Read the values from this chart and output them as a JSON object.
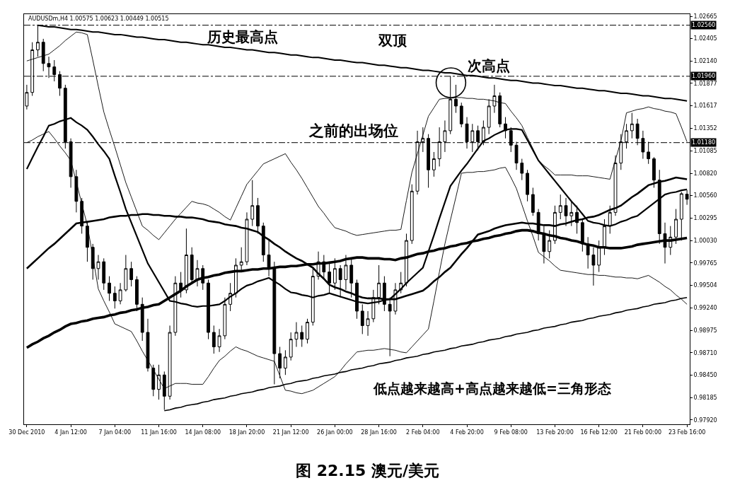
{
  "chart_data": {
    "type": "candlestick",
    "title": "图 22.15 澳元/美元",
    "annotations": [
      "AUDUSDm,H4 1.00575 1.00623 1.00449 1.00515",
      "历史最高点",
      "双顶",
      "次高点",
      "之前的出场位",
      "低点越来越高+高点越来越低=三角形态"
    ],
    "categories": [
      "30 Dec 2010",
      null,
      null,
      null,
      null,
      null,
      null,
      null,
      "4 Jan 12:00",
      null,
      null,
      null,
      null,
      null,
      null,
      null,
      "7 Jan 04:00",
      null,
      null,
      null,
      null,
      null,
      null,
      null,
      "11 Jan 16:00",
      null,
      null,
      null,
      null,
      null,
      null,
      null,
      "14 Jan 08:00",
      null,
      null,
      null,
      null,
      null,
      null,
      null,
      "18 Jan 20:00",
      null,
      null,
      null,
      null,
      null,
      null,
      null,
      "21 Jan 12:00",
      null,
      null,
      null,
      null,
      null,
      null,
      null,
      "26 Jan 00:00",
      null,
      null,
      null,
      null,
      null,
      null,
      null,
      "28 Jan 16:00",
      null,
      null,
      null,
      null,
      null,
      null,
      null,
      "2 Feb 04:00",
      null,
      null,
      null,
      null,
      null,
      null,
      null,
      "4 Feb 20:00",
      null,
      null,
      null,
      null,
      null,
      null,
      null,
      "9 Feb 08:00",
      null,
      null,
      null,
      null,
      null,
      null,
      null,
      "13 Feb 20:00",
      null,
      null,
      null,
      null,
      null,
      null,
      null,
      "16 Feb 12:00",
      null,
      null,
      null,
      null,
      null,
      null,
      null,
      "21 Feb 00:00",
      null,
      null,
      null,
      null,
      null,
      null,
      null,
      "23 Feb 16:00"
    ],
    "color": "#000000",
    "ohlc": [
      [
        1.0161,
        1.0186,
        1.0157,
        1.0177
      ],
      [
        1.0177,
        1.0236,
        1.0173,
        1.0227
      ],
      [
        1.0227,
        1.0256,
        1.0219,
        1.0236
      ],
      [
        1.0236,
        1.024,
        1.0202,
        1.0211
      ],
      [
        1.0211,
        1.0219,
        1.0194,
        1.0207
      ],
      [
        1.0207,
        1.0215,
        1.019,
        1.0198
      ],
      [
        1.0198,
        1.0202,
        1.0173,
        1.0182
      ],
      [
        1.0182,
        1.0186,
        1.0111,
        1.0119
      ],
      [
        1.0119,
        1.0123,
        1.0065,
        1.0078
      ],
      [
        1.0078,
        1.0086,
        1.0036,
        1.0049
      ],
      [
        1.0049,
        1.0053,
        1.0011,
        1.002
      ],
      [
        1.002,
        1.0024,
        0.9978,
        0.9995
      ],
      [
        0.9995,
        0.9999,
        0.9957,
        0.997
      ],
      [
        0.997,
        0.9986,
        0.9957,
        0.9978
      ],
      [
        0.9978,
        0.9982,
        0.9945,
        0.9953
      ],
      [
        0.9953,
        0.9961,
        0.9932,
        0.9941
      ],
      [
        0.9941,
        0.9949,
        0.9923,
        0.9932
      ],
      [
        0.9932,
        0.9953,
        0.9928,
        0.9945
      ],
      [
        0.9945,
        0.9986,
        0.9943,
        0.997
      ],
      [
        0.997,
        0.9978,
        0.9949,
        0.9957
      ],
      [
        0.9957,
        0.9961,
        0.992,
        0.9928
      ],
      [
        0.9928,
        0.9936,
        0.9885,
        0.9895
      ],
      [
        0.9895,
        0.9911,
        0.9849,
        0.9853
      ],
      [
        0.9853,
        0.9857,
        0.982,
        0.9828
      ],
      [
        0.9828,
        0.9857,
        0.9816,
        0.9845
      ],
      [
        0.9845,
        0.9849,
        0.9804,
        0.982
      ],
      [
        0.982,
        0.9903,
        0.9816,
        0.9895
      ],
      [
        0.9895,
        0.9961,
        0.9891,
        0.9953
      ],
      [
        0.9953,
        0.9966,
        0.9936,
        0.9945
      ],
      [
        0.9945,
        1.0017,
        0.9941,
        0.9986
      ],
      [
        0.9986,
        0.9995,
        0.9953,
        0.9957
      ],
      [
        0.9957,
        0.998,
        0.9949,
        0.997
      ],
      [
        0.997,
        0.9974,
        0.9945,
        0.9953
      ],
      [
        0.9953,
        0.9957,
        0.9887,
        0.9895
      ],
      [
        0.9895,
        0.9903,
        0.987,
        0.9878
      ],
      [
        0.9878,
        0.9899,
        0.9872,
        0.9891
      ],
      [
        0.9891,
        0.9936,
        0.9887,
        0.9928
      ],
      [
        0.9928,
        0.9953,
        0.992,
        0.9941
      ],
      [
        0.9941,
        0.9982,
        0.9936,
        0.9974
      ],
      [
        0.9974,
        0.9995,
        0.9966,
        0.9978
      ],
      [
        0.9978,
        1.0036,
        0.9974,
        1.0028
      ],
      [
        1.0028,
        1.0074,
        1.002,
        1.0044
      ],
      [
        1.0044,
        1.0053,
        1.0011,
        1.002
      ],
      [
        1.002,
        1.0024,
        0.9978,
        0.9986
      ],
      [
        0.9986,
        1.0003,
        0.9961,
        0.997
      ],
      [
        0.997,
        0.9978,
        0.9834,
        0.987
      ],
      [
        0.987,
        0.9878,
        0.9841,
        0.9853
      ],
      [
        0.9853,
        0.9874,
        0.9845,
        0.9866
      ],
      [
        0.9866,
        0.9895,
        0.9862,
        0.9887
      ],
      [
        0.9887,
        0.9907,
        0.9878,
        0.9895
      ],
      [
        0.9895,
        0.9903,
        0.9878,
        0.9887
      ],
      [
        0.9887,
        0.9911,
        0.9882,
        0.9907
      ],
      [
        0.9907,
        0.997,
        0.9903,
        0.9961
      ],
      [
        0.9961,
        0.999,
        0.9957,
        0.9978
      ],
      [
        0.9978,
        0.9986,
        0.9957,
        0.9966
      ],
      [
        0.9966,
        0.9978,
        0.9941,
        0.9953
      ],
      [
        0.9953,
        0.9982,
        0.9945,
        0.997
      ],
      [
        0.997,
        0.9974,
        0.9936,
        0.9957
      ],
      [
        0.9957,
        0.9986,
        0.9945,
        0.9974
      ],
      [
        0.9974,
        0.9982,
        0.9936,
        0.9953
      ],
      [
        0.9953,
        0.9957,
        0.9911,
        0.992
      ],
      [
        0.992,
        0.9928,
        0.9893,
        0.9903
      ],
      [
        0.9903,
        0.992,
        0.9891,
        0.9911
      ],
      [
        0.9911,
        0.9945,
        0.9907,
        0.9936
      ],
      [
        0.9936,
        0.9974,
        0.9928,
        0.9953
      ],
      [
        0.9953,
        0.9961,
        0.992,
        0.9928
      ],
      [
        0.9928,
        0.9936,
        0.9867,
        0.992
      ],
      [
        0.992,
        0.9953,
        0.9916,
        0.9945
      ],
      [
        0.9945,
        0.9966,
        0.9941,
        0.9953
      ],
      [
        0.9953,
        1.0011,
        0.9949,
        1.0003
      ],
      [
        1.0003,
        1.0069,
        0.9999,
        1.0061
      ],
      [
        1.0061,
        1.0132,
        1.0057,
        1.0119
      ],
      [
        1.0119,
        1.0136,
        1.0107,
        1.0123
      ],
      [
        1.0123,
        1.0128,
        1.0065,
        1.0086
      ],
      [
        1.0086,
        1.0107,
        1.0078,
        1.0099
      ],
      [
        1.0099,
        1.0136,
        1.009,
        1.0119
      ],
      [
        1.0119,
        1.0144,
        1.0107,
        1.0132
      ],
      [
        1.0132,
        1.0196,
        1.0128,
        1.0169
      ],
      [
        1.0169,
        1.0186,
        1.0153,
        1.0161
      ],
      [
        1.0161,
        1.0165,
        1.0136,
        1.014
      ],
      [
        1.014,
        1.0148,
        1.0111,
        1.0119
      ],
      [
        1.0119,
        1.014,
        1.0107,
        1.0132
      ],
      [
        1.0132,
        1.0138,
        1.0109,
        1.0119
      ],
      [
        1.0119,
        1.0144,
        1.0115,
        1.0136
      ],
      [
        1.0136,
        1.0169,
        1.0128,
        1.0161
      ],
      [
        1.0161,
        1.0186,
        1.0153,
        1.0173
      ],
      [
        1.0173,
        1.0177,
        1.0136,
        1.014
      ],
      [
        1.014,
        1.0148,
        1.0123,
        1.0132
      ],
      [
        1.0132,
        1.0136,
        1.0107,
        1.0115
      ],
      [
        1.0115,
        1.0119,
        1.0086,
        1.0094
      ],
      [
        1.0094,
        1.0099,
        1.0074,
        1.0082
      ],
      [
        1.0082,
        1.0086,
        1.0049,
        1.0057
      ],
      [
        1.0057,
        1.0065,
        1.0032,
        1.0036
      ],
      [
        1.0036,
        1.004,
        1.0003,
        1.0011
      ],
      [
        1.0011,
        1.002,
        0.9976,
        0.999
      ],
      [
        0.999,
        1.0015,
        0.9982,
        1.0003
      ],
      [
        1.0003,
        1.0044,
        0.9999,
        1.0036
      ],
      [
        1.0036,
        1.0057,
        1.0028,
        1.0044
      ],
      [
        1.0044,
        1.0053,
        1.002,
        1.0032
      ],
      [
        1.0032,
        1.0049,
        1.002,
        1.0036
      ],
      [
        1.0036,
        1.0044,
        1.0011,
        1.0024
      ],
      [
        1.0024,
        1.0028,
        0.999,
        0.9999
      ],
      [
        0.9999,
        1.0007,
        0.997,
        0.9986
      ],
      [
        0.9986,
        0.9995,
        0.995,
        0.9974
      ],
      [
        0.9974,
        1.0003,
        0.9966,
        0.9995
      ],
      [
        0.9995,
        1.0028,
        0.9986,
        1.002
      ],
      [
        1.002,
        1.0044,
        1.0011,
        1.0036
      ],
      [
        1.0036,
        1.0103,
        1.0032,
        1.0094
      ],
      [
        1.0094,
        1.0128,
        1.0086,
        1.0119
      ],
      [
        1.0119,
        1.014,
        1.0111,
        1.0132
      ],
      [
        1.0132,
        1.0153,
        1.0123,
        1.014
      ],
      [
        1.014,
        1.0146,
        1.0115,
        1.0123
      ],
      [
        1.0123,
        1.0132,
        1.0099,
        1.0107
      ],
      [
        1.0107,
        1.0119,
        1.0093,
        1.0099
      ],
      [
        1.0099,
        1.0101,
        1.0065,
        1.0074
      ],
      [
        1.0074,
        1.0086,
        0.9999,
        1.0011
      ],
      [
        1.0011,
        1.0024,
        0.9976,
        0.9995
      ],
      [
        0.9995,
        1.002,
        0.9986,
        1.0007
      ],
      [
        1.0007,
        1.004,
        0.9999,
        1.0028
      ],
      [
        1.0028,
        1.006,
        1.0003,
        1.0058
      ],
      [
        1.00575,
        1.00623,
        1.00449,
        1.00515
      ]
    ],
    "series": [
      {
        "type": "line",
        "color": "#000000",
        "values": [
          null,
          null,
          1.0256,
          1.0255,
          1.0254,
          1.0254,
          1.0253,
          1.0252,
          1.0251,
          1.0251,
          1.025,
          1.0249,
          1.0248,
          1.0248,
          1.0247,
          1.0246,
          1.0245,
          1.0245,
          1.0244,
          1.0243,
          1.0242,
          1.0242,
          1.0241,
          1.024,
          1.0239,
          1.0239,
          1.0238,
          1.0237,
          1.0236,
          1.0236,
          1.0235,
          1.0234,
          1.0233,
          1.0233,
          1.0232,
          1.0231,
          1.023,
          1.023,
          1.0229,
          1.0228,
          1.0227,
          1.0227,
          1.0226,
          1.0225,
          1.0224,
          1.0224,
          1.0223,
          1.0222,
          1.0221,
          1.0221,
          1.022,
          1.0219,
          1.0218,
          1.0218,
          1.0217,
          1.0216,
          1.0215,
          1.0215,
          1.0214,
          1.0213,
          1.0212,
          1.0212,
          1.0211,
          1.021,
          1.0209,
          1.0209,
          1.0208,
          1.0207,
          1.0206,
          1.0206,
          1.0205,
          1.0204,
          1.0203,
          1.0203,
          1.0202,
          1.0201,
          1.02,
          1.02,
          1.0199,
          1.0198,
          1.0197,
          1.0197,
          1.0196,
          1.0195,
          1.0194,
          1.0194,
          1.0193,
          1.0192,
          1.0191,
          1.0191,
          1.019,
          1.0189,
          1.0188,
          1.0188,
          1.0187,
          1.0186,
          1.0185,
          1.0185,
          1.0184,
          1.0183,
          1.0182,
          1.0182,
          1.0181,
          1.018,
          1.0179,
          1.0179,
          1.0178,
          1.0177,
          1.0176,
          1.0176,
          1.0175,
          1.0174,
          1.0173,
          1.0173,
          1.0172,
          1.0171,
          1.017,
          1.017,
          1.0169,
          1.0168,
          1.0167
        ]
      },
      {
        "type": "line",
        "color": "#000000",
        "values": [
          null,
          null,
          null,
          null,
          null,
          null,
          null,
          null,
          null,
          null,
          null,
          null,
          null,
          null,
          null,
          null,
          null,
          null,
          null,
          null,
          null,
          null,
          null,
          null,
          null,
          0.9803,
          0.9804,
          0.9806,
          0.9807,
          0.9809,
          0.981,
          0.9811,
          0.9813,
          0.9814,
          0.9816,
          0.9817,
          0.9818,
          0.982,
          0.9821,
          0.9823,
          0.9824,
          0.9825,
          0.9827,
          0.9828,
          0.983,
          0.9831,
          0.9832,
          0.9834,
          0.9835,
          0.9837,
          0.9838,
          0.9839,
          0.9841,
          0.9842,
          0.9844,
          0.9845,
          0.9846,
          0.9848,
          0.9849,
          0.9851,
          0.9852,
          0.9853,
          0.9855,
          0.9856,
          0.9858,
          0.9859,
          0.986,
          0.9862,
          0.9863,
          0.9865,
          0.9866,
          0.9867,
          0.9869,
          0.987,
          0.9872,
          0.9873,
          0.9874,
          0.9876,
          0.9877,
          0.9879,
          0.988,
          0.9881,
          0.9883,
          0.9884,
          0.9886,
          0.9887,
          0.9888,
          0.989,
          0.9891,
          0.9893,
          0.9894,
          0.9895,
          0.9897,
          0.9898,
          0.99,
          0.9901,
          0.9902,
          0.9904,
          0.9905,
          0.9907,
          0.9908,
          0.9909,
          0.9911,
          0.9912,
          0.9914,
          0.9915,
          0.9916,
          0.9918,
          0.9919,
          0.9921,
          0.9922,
          0.9923,
          0.9925,
          0.9926,
          0.9928,
          0.9929,
          0.993,
          0.9932,
          0.9933,
          0.9935,
          0.9936
        ]
      },
      {
        "type": "line",
        "color": "#000000",
        "values": [
          0.9877,
          0.9881,
          0.9884,
          0.9888,
          0.9891,
          0.9895,
          0.9898,
          0.9902,
          0.9905,
          0.9906,
          0.9908,
          0.9909,
          0.9911,
          0.9912,
          0.9913,
          0.9915,
          0.9916,
          0.9918,
          0.9919,
          0.9921,
          0.9922,
          0.9924,
          0.9925,
          0.9927,
          0.9928,
          0.9932,
          0.9936,
          0.994,
          0.9944,
          0.9949,
          0.9953,
          0.9957,
          0.9959,
          0.996,
          0.9962,
          0.9963,
          0.9965,
          0.9966,
          0.9967,
          0.9967,
          0.9968,
          0.9969,
          0.9969,
          0.997,
          0.997,
          0.9971,
          0.9972,
          0.9972,
          0.9973,
          0.9973,
          0.9974,
          0.9975,
          0.9975,
          0.9976,
          0.9976,
          0.9977,
          0.9978,
          0.9979,
          0.9981,
          0.9982,
          0.9983,
          0.9983,
          0.9982,
          0.9982,
          0.9982,
          0.9981,
          0.9981,
          0.998,
          0.9982,
          0.9983,
          0.9985,
          0.9987,
          0.9988,
          0.999,
          0.9991,
          0.9993,
          0.9994,
          0.9996,
          0.9997,
          0.9999,
          1.0,
          1.0002,
          1.0003,
          1.0005,
          1.0006,
          1.0008,
          1.0009,
          1.0011,
          1.0012,
          1.0014,
          1.0015,
          1.0015,
          1.0014,
          1.0012,
          1.0011,
          1.0009,
          1.0008,
          1.0006,
          1.0005,
          1.0003,
          1.0002,
          1.0,
          0.9998,
          0.9997,
          0.9995,
          0.9995,
          0.9994,
          0.9994,
          0.9994,
          0.9995,
          0.9996,
          0.9998,
          0.9999,
          1.0,
          1.0001,
          1.0002,
          1.0003,
          1.0003,
          1.0004,
          1.0005,
          1.0006
        ]
      },
      {
        "type": "line",
        "color": "#000000",
        "values": [
          0.997,
          0.9976,
          0.9982,
          0.9988,
          0.9994,
          0.9999,
          1.0005,
          1.0011,
          1.0017,
          1.0023,
          1.0024,
          1.0025,
          1.0026,
          1.0027,
          1.0028,
          1.003,
          1.0031,
          1.0032,
          1.0032,
          1.0033,
          1.0033,
          1.0034,
          1.0034,
          1.0033,
          1.0033,
          1.0032,
          1.0032,
          1.0031,
          1.0031,
          1.003,
          1.003,
          1.0029,
          1.0028,
          1.0026,
          1.0025,
          1.0024,
          1.0022,
          1.0021,
          1.002,
          1.0018,
          1.0017,
          1.0015,
          1.0013,
          1.0008,
          1.0004,
          0.9999,
          0.9995,
          0.999,
          0.9986,
          0.9982,
          0.9979,
          0.9975,
          0.9971,
          0.9964,
          0.9958,
          0.9951,
          0.9948,
          0.9946,
          0.9943,
          0.9941,
          0.9938,
          0.9936,
          0.9935,
          0.9935,
          0.9935,
          0.9934,
          0.9934,
          0.9934,
          0.9936,
          0.9938,
          0.994,
          0.9942,
          0.9944,
          0.9949,
          0.9955,
          0.996,
          0.9966,
          0.9971,
          0.9979,
          0.9987,
          0.9994,
          1.0002,
          1.001,
          1.0012,
          1.0014,
          1.0017,
          1.0019,
          1.0021,
          1.0022,
          1.0023,
          1.0024,
          1.0023,
          1.0023,
          1.0022,
          1.0021,
          1.0021,
          1.002,
          1.0022,
          1.0023,
          1.0025,
          1.0027,
          1.0028,
          1.003,
          1.0031,
          1.0033,
          1.0036,
          1.0039,
          1.0041,
          1.0044,
          1.0049,
          1.0054,
          1.0058,
          1.0063,
          1.0068,
          1.007,
          1.0072,
          1.0073,
          1.0075,
          1.0077,
          1.0076,
          1.0075
        ]
      },
      {
        "type": "line",
        "color": "#000000",
        "values": [
          1.0087,
          1.01,
          1.0113,
          1.0125,
          1.0138,
          1.014,
          1.0143,
          1.0145,
          1.0147,
          1.0142,
          1.0138,
          1.0133,
          1.0125,
          1.0116,
          1.0108,
          1.0099,
          1.0079,
          1.006,
          1.004,
          1.0024,
          1.0008,
          0.9992,
          0.9976,
          0.9965,
          0.9954,
          0.9943,
          0.9932,
          0.9931,
          0.9929,
          0.9928,
          0.9926,
          0.9925,
          0.9926,
          0.9926,
          0.9927,
          0.9928,
          0.9932,
          0.9937,
          0.9941,
          0.9946,
          0.995,
          0.9952,
          0.9955,
          0.9957,
          0.9959,
          0.9955,
          0.9951,
          0.9946,
          0.9942,
          0.9941,
          0.9939,
          0.9938,
          0.9936,
          0.9938,
          0.9939,
          0.9941,
          0.9939,
          0.9937,
          0.9935,
          0.9933,
          0.9931,
          0.993,
          0.9929,
          0.993,
          0.9931,
          0.9933,
          0.9934,
          0.994,
          0.9946,
          0.9953,
          0.9959,
          0.9965,
          0.9971,
          0.999,
          1.0009,
          1.0029,
          1.0048,
          1.0067,
          1.0076,
          1.0085,
          1.0093,
          1.0102,
          1.0111,
          1.012,
          1.0123,
          1.0127,
          1.013,
          1.0133,
          1.0134,
          1.0134,
          1.0133,
          1.0121,
          1.0109,
          1.0097,
          1.0089,
          1.0081,
          1.0073,
          1.0065,
          1.0057,
          1.0049,
          1.0042,
          1.0034,
          1.0026,
          1.0024,
          1.0023,
          1.0021,
          1.002,
          1.0022,
          1.0025,
          1.0027,
          1.003,
          1.0032,
          1.0037,
          1.0042,
          1.0047,
          1.0052,
          1.0057,
          1.0059,
          1.006,
          1.0062,
          1.0063
        ]
      },
      {
        "type": "line",
        "color": "#000000",
        "values": [
          1.0214,
          1.0216,
          1.0218,
          1.022,
          1.0222,
          1.0227,
          1.0232,
          1.0238,
          1.0243,
          1.0248,
          1.0247,
          1.0245,
          1.0215,
          1.0184,
          1.0154,
          1.0133,
          1.0113,
          1.0092,
          1.0071,
          1.0054,
          1.0037,
          1.002,
          1.0015,
          1.0009,
          1.0004,
          1.0012,
          1.002,
          1.0028,
          1.0035,
          1.0042,
          1.0049,
          1.0047,
          1.0046,
          1.0044,
          1.004,
          1.0036,
          1.0031,
          1.0027,
          1.0041,
          1.0055,
          1.0069,
          1.0077,
          1.0085,
          1.0093,
          1.0096,
          1.0099,
          1.0102,
          1.0105,
          1.0095,
          1.0086,
          1.0076,
          1.0065,
          1.0054,
          1.0043,
          1.0035,
          1.0026,
          1.0018,
          1.0016,
          1.0014,
          1.0011,
          1.0009,
          1.001,
          1.0011,
          1.0012,
          1.0013,
          1.0014,
          1.0015,
          1.0015,
          1.0016,
          1.005,
          1.0083,
          1.0105,
          1.0127,
          1.0149,
          1.0159,
          1.0169,
          1.017,
          1.017,
          1.0171,
          1.0171,
          1.017,
          1.017,
          1.0169,
          1.0169,
          1.0168,
          1.0167,
          1.0165,
          1.0164,
          1.0155,
          1.0147,
          1.0138,
          1.0124,
          1.0111,
          1.0097,
          1.0091,
          1.0086,
          1.008,
          1.008,
          1.008,
          1.008,
          1.0079,
          1.0079,
          1.0079,
          1.0078,
          1.0077,
          1.0076,
          1.0075,
          1.0098,
          1.012,
          1.0153,
          1.0155,
          1.0157,
          1.0158,
          1.016,
          1.0158,
          1.0157,
          1.0155,
          1.0154,
          1.0152,
          1.0136,
          1.0119
        ]
      },
      {
        "type": "line",
        "color": "#000000",
        "values": [
          1.0118,
          1.0121,
          1.0125,
          1.0128,
          1.0131,
          1.0123,
          1.0114,
          1.0106,
          1.0097,
          1.0072,
          1.0046,
          1.0021,
          0.9984,
          0.9946,
          0.9932,
          0.9919,
          0.9905,
          0.9902,
          0.9899,
          0.9896,
          0.9885,
          0.9873,
          0.9862,
          0.9851,
          0.984,
          0.9829,
          0.9832,
          0.9835,
          0.9835,
          0.9835,
          0.9834,
          0.9834,
          0.9834,
          0.9843,
          0.9853,
          0.9862,
          0.9867,
          0.9873,
          0.9878,
          0.9875,
          0.9873,
          0.987,
          0.9867,
          0.9865,
          0.9863,
          0.9861,
          0.9844,
          0.9827,
          0.9826,
          0.9824,
          0.9823,
          0.9825,
          0.9827,
          0.9831,
          0.9835,
          0.9839,
          0.9843,
          0.985,
          0.9858,
          0.9865,
          0.9872,
          0.9873,
          0.9874,
          0.9874,
          0.9875,
          0.9876,
          0.9875,
          0.9874,
          0.9872,
          0.9871,
          0.9878,
          0.9885,
          0.9892,
          0.9899,
          0.9932,
          0.9966,
          0.9999,
          1.0027,
          1.0054,
          1.0082,
          1.0083,
          1.0083,
          1.0084,
          1.0084,
          1.0085,
          1.0086,
          1.0088,
          1.0089,
          1.0077,
          1.0064,
          1.0045,
          1.0026,
          1.0008,
          0.9989,
          0.9984,
          0.9979,
          0.9973,
          0.9968,
          0.9967,
          0.9966,
          0.9965,
          0.9964,
          0.9963,
          0.9963,
          0.9962,
          0.9962,
          0.9961,
          0.996,
          0.996,
          0.9959,
          0.9959,
          0.9958,
          0.996,
          0.9962,
          0.9958,
          0.9954,
          0.9949,
          0.9945,
          0.9939,
          0.9934,
          0.9928
        ]
      }
    ],
    "ylim": [
      0.9787,
      1.0269
    ],
    "yticks": [
      {
        "value": 0.9792,
        "label": "0.97920"
      },
      {
        "value": 0.98185,
        "label": "0.98185"
      },
      {
        "value": 0.9845,
        "label": "0.98450"
      },
      {
        "value": 0.9871,
        "label": "0.98710"
      },
      {
        "value": 0.98975,
        "label": "0.98975"
      },
      {
        "value": 0.9924,
        "label": "0.99240"
      },
      {
        "value": 0.99504,
        "label": "0.99504"
      },
      {
        "value": 0.99765,
        "label": "0.99765"
      },
      {
        "value": 1.0003,
        "label": "1.00030"
      },
      {
        "value": 1.00295,
        "label": "1.00295"
      },
      {
        "value": 1.0056,
        "label": "1.00560"
      },
      {
        "value": 1.0082,
        "label": "1.00820"
      },
      {
        "value": 1.01085,
        "label": "1.01085"
      },
      {
        "value": 1.01352,
        "label": "1.01352"
      },
      {
        "value": 1.01617,
        "label": "1.01617"
      },
      {
        "value": 1.01877,
        "label": "1.01877"
      },
      {
        "value": 1.0214,
        "label": "1.02140"
      },
      {
        "value": 1.02405,
        "label": "1.02405"
      },
      {
        "value": 1.02665,
        "label": "1.02665"
      }
    ],
    "ref_lines": [
      {
        "axis": "y",
        "value": 1.0256,
        "label": "1.02560",
        "line_style": "dashed"
      },
      {
        "axis": "y",
        "value": 1.0196,
        "label": "1.01960",
        "line_style": "dashed"
      },
      {
        "axis": "y",
        "value": 1.0118,
        "label": "1.01180",
        "line_style": "dashed"
      }
    ]
  }
}
